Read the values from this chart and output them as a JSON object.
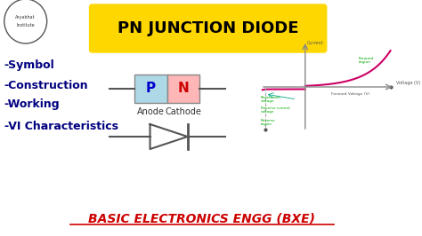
{
  "bg_color": "#ffffff",
  "title_text": "PN JUNCTION DIODE",
  "title_bg": "#FFD700",
  "title_color": "#000000",
  "left_items": [
    "-Symbol",
    "-Construction",
    "-Working",
    "-VI Characteristics"
  ],
  "left_color": "#000080",
  "bottom_text": "BASIC ELECTRONICS ENGG (BXE)",
  "bottom_color": "#cc0000",
  "pn_p_color": "#add8e6",
  "pn_n_color": "#ffb6b6",
  "p_label": "P",
  "n_label": "N",
  "p_label_color": "#0000cc",
  "n_label_color": "#cc0000",
  "anode_label": "Anode",
  "cathode_label": "Cathode",
  "curve_color": "#cc0066",
  "axis_color": "#888888",
  "annotation_color": "#00aa00",
  "forward_region_label": "Forward\nregion",
  "voltage_label": "Voltage (V)",
  "forward_voltage_label": "Forward Voltage (V)",
  "breakdown_voltage_label": "Breakdown\nvoltage",
  "reverse_current_label": "Reverse current\nvoltage",
  "reverse_region_label": "Reverse\nregion",
  "current_label": "Current"
}
